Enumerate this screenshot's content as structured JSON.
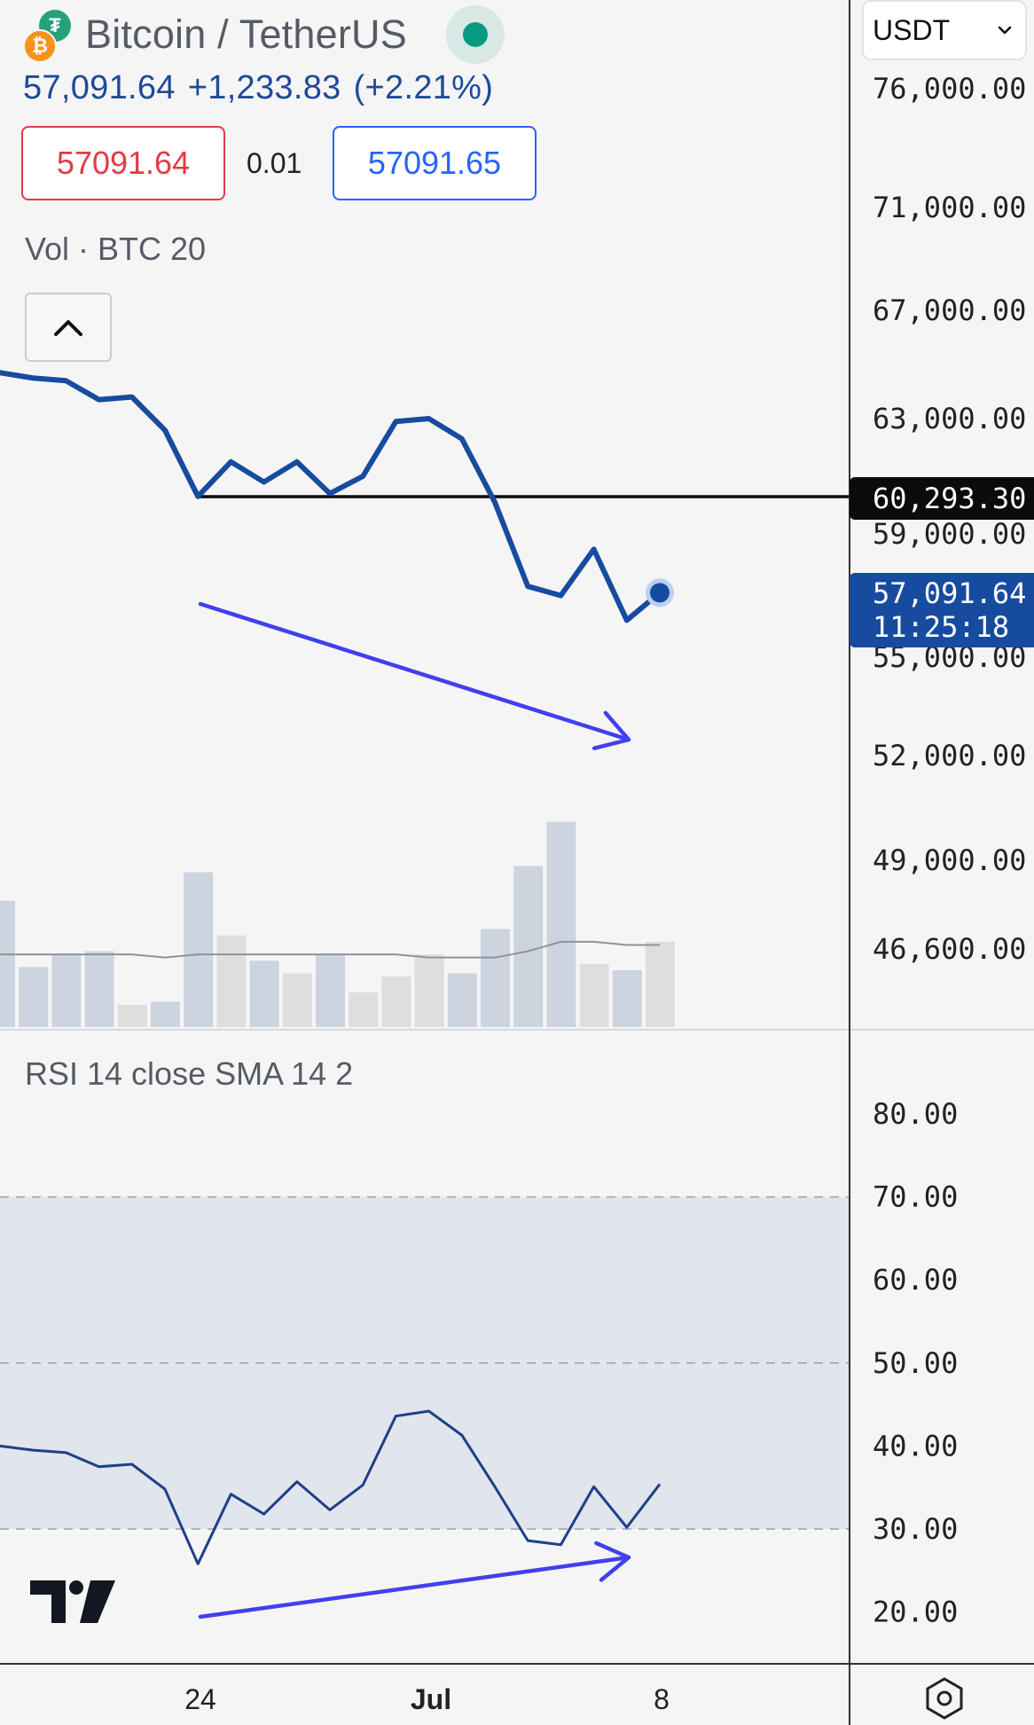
{
  "header": {
    "symbol": "Bitcoin / TetherUS",
    "last_price": "57,091.64",
    "change": "+1,233.83",
    "change_pct": "(+2.21%)",
    "bid": "57091.64",
    "spread": "0.01",
    "ask": "57091.65",
    "volume_label": "Vol · BTC 20",
    "rsi_label": "RSI 14 close SMA 14 2",
    "currency": "USDT",
    "logo_btc_glyph": "₿",
    "logo_usdt_glyph": "₮",
    "status_color": "#089981",
    "price_color": "#1e4a9a",
    "bid_color": "#e23b47",
    "ask_color": "#2962ff"
  },
  "price_tags": {
    "level_price": "60,293.30",
    "current_price": "57,091.64",
    "countdown": "11:25:18"
  },
  "chart_data": {
    "type": "line",
    "panes": [
      "price",
      "volume",
      "rsi"
    ],
    "x_ticks": [
      "24",
      "Jul",
      "8"
    ],
    "price": {
      "axis_ticks": [
        "76,000.00",
        "71,000.00",
        "67,000.00",
        "63,000.00",
        "59,000.00",
        "55,000.00",
        "52,000.00",
        "49,000.00",
        "46,600.00"
      ],
      "color": "#174ba0",
      "values": [
        64700,
        64500,
        64400,
        63700,
        63800,
        62600,
        60300,
        61500,
        60800,
        61500,
        60400,
        61000,
        62900,
        63000,
        62300,
        60100,
        57300,
        57000,
        58500,
        56200,
        57091.64
      ],
      "horizontal_level": 60293.3,
      "last_value": 57091.64
    },
    "volume": {
      "label": "Vol · BTC 20",
      "values": [
        40,
        19,
        23,
        24,
        7,
        8,
        49,
        29,
        21,
        17,
        23,
        11,
        16,
        23,
        17,
        31,
        51,
        65,
        20,
        18,
        27
      ],
      "ma": [
        23,
        23,
        23,
        23,
        23,
        22,
        23,
        23,
        23,
        23,
        23,
        23,
        23,
        22,
        22,
        22,
        24,
        27,
        27,
        26,
        26
      ],
      "up_color": "#cbd4df",
      "down_color": "#dedede"
    },
    "rsi": {
      "label": "RSI 14 close SMA 14 2",
      "axis_ticks": [
        "80.00",
        "70.00",
        "60.00",
        "50.00",
        "40.00",
        "30.00",
        "20.00"
      ],
      "ylim": [
        20,
        80
      ],
      "band": [
        30,
        70
      ],
      "midline": 50,
      "values": [
        40,
        39.5,
        39.2,
        37.5,
        37.8,
        34.8,
        25.8,
        34.2,
        31.8,
        35.7,
        32.3,
        35.3,
        43.6,
        44.2,
        41.3,
        35.1,
        28.6,
        28.1,
        35.1,
        30.2,
        35.4
      ],
      "color": "#1e3f8a"
    },
    "annotations": [
      {
        "pane": "price",
        "type": "arrow",
        "direction": "down",
        "color": "#4040ee"
      },
      {
        "pane": "rsi",
        "type": "arrow",
        "direction": "up",
        "color": "#4040ee"
      }
    ]
  }
}
